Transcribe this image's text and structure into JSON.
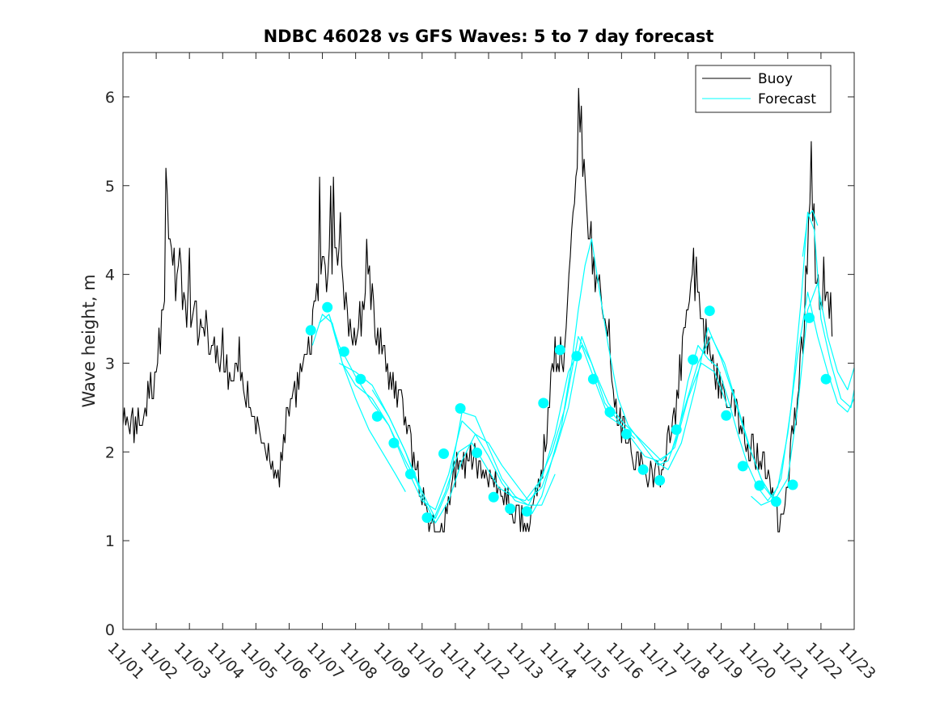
{
  "chart_data": {
    "type": "line",
    "title": "NDBC 46028 vs GFS Waves: 5 to 7 day forecast",
    "xlabel": "",
    "ylabel": "Wave height, m",
    "xlim": [
      0,
      22
    ],
    "ylim": [
      0,
      6.5
    ],
    "x_ticks": [
      0,
      1,
      2,
      3,
      4,
      5,
      6,
      7,
      8,
      9,
      10,
      11,
      12,
      13,
      14,
      15,
      16,
      17,
      18,
      19,
      20,
      21,
      22
    ],
    "x_tick_labels": [
      "11/01",
      "11/02",
      "11/03",
      "11/04",
      "11/05",
      "11/06",
      "11/07",
      "11/08",
      "11/09",
      "11/10",
      "11/11",
      "11/12",
      "11/13",
      "11/14",
      "11/15",
      "11/16",
      "11/17",
      "11/18",
      "11/19",
      "11/20",
      "11/21",
      "11/22",
      "11/23"
    ],
    "y_ticks": [
      0,
      1,
      2,
      3,
      4,
      5,
      6
    ],
    "y_tick_labels": [
      "0",
      "1",
      "2",
      "3",
      "4",
      "5",
      "6"
    ],
    "legend": {
      "placement": "top-right",
      "entries": [
        "Buoy",
        "Forecast"
      ]
    },
    "colors": {
      "buoy": "#000000",
      "forecast": "#00ffff",
      "axes": "#262626"
    },
    "buoy": {
      "name": "Buoy",
      "anchors": [
        [
          0.0,
          2.3
        ],
        [
          0.3,
          2.3
        ],
        [
          0.6,
          2.4
        ],
        [
          0.9,
          2.8
        ],
        [
          1.1,
          3.2
        ],
        [
          1.25,
          3.9
        ],
        [
          1.32,
          4.7
        ],
        [
          1.38,
          4.5
        ],
        [
          1.55,
          4.0
        ],
        [
          1.75,
          3.8
        ],
        [
          2.0,
          3.6
        ],
        [
          2.3,
          3.4
        ],
        [
          2.6,
          3.2
        ],
        [
          2.9,
          3.0
        ],
        [
          3.2,
          2.9
        ],
        [
          3.5,
          2.9
        ],
        [
          3.8,
          2.5
        ],
        [
          4.0,
          2.3
        ],
        [
          4.2,
          2.1
        ],
        [
          4.4,
          1.95
        ],
        [
          4.55,
          1.7
        ],
        [
          4.65,
          1.65
        ],
        [
          4.8,
          2.0
        ],
        [
          5.0,
          2.6
        ],
        [
          5.3,
          2.8
        ],
        [
          5.6,
          3.2
        ],
        [
          5.9,
          3.8
        ],
        [
          6.0,
          4.2
        ],
        [
          6.2,
          4.0
        ],
        [
          6.4,
          4.4
        ],
        [
          6.6,
          4.1
        ],
        [
          6.75,
          3.5
        ],
        [
          7.0,
          3.3
        ],
        [
          7.2,
          3.5
        ],
        [
          7.4,
          4.1
        ],
        [
          7.6,
          3.3
        ],
        [
          7.9,
          3.0
        ],
        [
          8.2,
          2.7
        ],
        [
          8.5,
          2.5
        ],
        [
          8.7,
          2.0
        ],
        [
          9.0,
          1.6
        ],
        [
          9.2,
          1.3
        ],
        [
          9.45,
          1.1
        ],
        [
          9.6,
          1.1
        ],
        [
          9.8,
          1.4
        ],
        [
          10.0,
          1.8
        ],
        [
          10.3,
          1.9
        ],
        [
          10.6,
          1.9
        ],
        [
          10.9,
          1.7
        ],
        [
          11.2,
          1.6
        ],
        [
          11.5,
          1.5
        ],
        [
          11.8,
          1.3
        ],
        [
          12.1,
          1.2
        ],
        [
          12.3,
          1.25
        ],
        [
          12.5,
          1.6
        ],
        [
          12.7,
          2.1
        ],
        [
          12.9,
          2.9
        ],
        [
          13.1,
          3.0
        ],
        [
          13.3,
          3.2
        ],
        [
          13.5,
          4.5
        ],
        [
          13.65,
          5.3
        ],
        [
          13.75,
          5.8
        ],
        [
          13.85,
          5.3
        ],
        [
          14.0,
          4.6
        ],
        [
          14.2,
          4.0
        ],
        [
          14.4,
          3.7
        ],
        [
          14.6,
          3.3
        ],
        [
          14.8,
          2.6
        ],
        [
          15.0,
          2.3
        ],
        [
          15.3,
          2.0
        ],
        [
          15.6,
          1.9
        ],
        [
          15.9,
          1.75
        ],
        [
          16.1,
          1.7
        ],
        [
          16.3,
          2.0
        ],
        [
          16.6,
          2.4
        ],
        [
          16.8,
          3.0
        ],
        [
          17.0,
          3.8
        ],
        [
          17.2,
          4.0
        ],
        [
          17.4,
          3.6
        ],
        [
          17.6,
          3.2
        ],
        [
          17.8,
          2.9
        ],
        [
          18.1,
          2.6
        ],
        [
          18.4,
          2.5
        ],
        [
          18.7,
          2.2
        ],
        [
          19.0,
          2.0
        ],
        [
          19.3,
          1.8
        ],
        [
          19.55,
          1.5
        ],
        [
          19.7,
          1.3
        ],
        [
          19.8,
          1.2
        ],
        [
          19.95,
          1.5
        ],
        [
          20.1,
          2.1
        ],
        [
          20.3,
          2.6
        ],
        [
          20.5,
          3.5
        ],
        [
          20.65,
          4.8
        ],
        [
          20.75,
          4.9
        ],
        [
          20.85,
          4.0
        ],
        [
          21.0,
          3.7
        ],
        [
          21.2,
          3.8
        ],
        [
          21.35,
          3.5
        ]
      ],
      "spikes": [
        [
          1.3,
          5.2
        ],
        [
          1.7,
          4.3
        ],
        [
          2.0,
          4.3
        ],
        [
          2.5,
          3.6
        ],
        [
          3.0,
          3.4
        ],
        [
          3.5,
          3.3
        ],
        [
          5.9,
          5.1
        ],
        [
          6.25,
          5.0
        ],
        [
          6.35,
          5.1
        ],
        [
          6.55,
          4.7
        ],
        [
          7.35,
          4.4
        ],
        [
          13.0,
          3.3
        ],
        [
          13.7,
          6.1
        ],
        [
          13.75,
          5.6
        ],
        [
          14.35,
          4.0
        ],
        [
          17.15,
          4.3
        ],
        [
          17.25,
          4.2
        ],
        [
          20.7,
          5.5
        ],
        [
          21.1,
          4.2
        ]
      ],
      "noise_amplitude": 0.22
    },
    "forecast": {
      "name": "Forecast",
      "lines": [
        {
          "x": [
            5.7,
            6.0,
            6.3,
            6.6,
            7.0,
            7.4,
            7.8,
            8.2,
            8.5
          ],
          "y": [
            3.2,
            3.55,
            3.45,
            3.0,
            2.6,
            2.25,
            2.0,
            1.75,
            1.55
          ]
        },
        {
          "x": [
            5.9,
            6.2,
            6.5,
            7.0,
            7.5,
            8.0,
            8.5,
            9.0
          ],
          "y": [
            3.45,
            3.55,
            3.2,
            2.85,
            2.55,
            2.3,
            1.9,
            1.55
          ]
        },
        {
          "x": [
            6.2,
            6.6,
            7.0,
            7.5,
            8.0,
            8.5,
            9.0,
            9.4,
            9.8,
            10.2,
            10.6,
            11.0,
            11.4,
            11.8,
            12.2,
            12.6,
            13.0
          ],
          "y": [
            3.55,
            3.0,
            2.75,
            2.6,
            2.3,
            1.85,
            1.45,
            1.35,
            1.75,
            2.35,
            2.2,
            1.95,
            1.65,
            1.45,
            1.4,
            1.4,
            1.75
          ]
        },
        {
          "x": [
            6.5,
            7.0,
            7.5,
            8.0,
            8.5,
            9.0,
            9.4,
            9.8,
            10.2,
            10.6,
            11.0,
            11.4,
            11.8,
            12.2,
            12.6,
            13.0,
            13.4,
            13.8,
            14.2,
            14.6,
            15.0,
            15.4
          ],
          "y": [
            3.0,
            2.9,
            2.75,
            2.4,
            2.0,
            1.55,
            1.25,
            1.6,
            2.45,
            2.4,
            2.05,
            1.7,
            1.5,
            1.4,
            1.7,
            2.2,
            2.9,
            3.2,
            2.8,
            2.4,
            2.3,
            2.15
          ]
        },
        {
          "x": [
            7.5,
            8.0,
            8.5,
            9.0,
            9.4,
            9.8,
            10.2,
            10.6,
            11.0,
            11.4,
            11.8,
            12.2,
            12.6,
            13.0,
            13.4,
            13.8,
            14.2,
            14.6,
            15.0,
            15.4,
            15.8,
            16.2,
            16.6,
            17.0,
            17.4,
            17.8,
            18.2
          ],
          "y": [
            2.7,
            2.4,
            2.0,
            1.5,
            1.2,
            1.45,
            1.9,
            2.2,
            2.1,
            1.85,
            1.65,
            1.45,
            1.6,
            2.0,
            2.5,
            3.3,
            2.9,
            2.55,
            2.35,
            2.2,
            2.05,
            1.9,
            2.05,
            2.6,
            3.0,
            2.9,
            2.5
          ]
        },
        {
          "x": [
            9.3,
            9.7,
            10.1,
            10.5,
            10.9,
            11.3,
            11.7,
            12.1,
            12.5,
            12.9,
            13.3,
            13.7,
            14.1,
            14.5,
            14.9,
            15.3,
            15.7,
            16.1,
            16.5,
            16.9,
            17.3,
            17.7,
            18.1,
            18.5,
            18.9,
            19.3,
            19.7
          ],
          "y": [
            1.2,
            1.55,
            2.0,
            2.1,
            1.85,
            1.6,
            1.5,
            1.45,
            1.65,
            2.0,
            2.5,
            3.3,
            3.0,
            2.55,
            2.35,
            2.15,
            1.95,
            1.9,
            2.0,
            2.5,
            3.0,
            3.3,
            3.0,
            2.5,
            2.0,
            1.6,
            1.4
          ]
        },
        {
          "x": [
            12.3,
            12.6,
            12.9,
            13.2,
            13.5,
            13.7,
            13.9,
            14.1,
            14.3,
            14.6,
            14.9,
            15.2,
            15.5,
            15.8,
            16.1,
            16.4,
            16.7,
            17.0,
            17.3,
            17.6,
            17.9,
            18.2,
            18.5,
            18.8,
            19.1,
            19.4,
            19.7,
            20.0,
            20.3,
            20.6,
            20.9,
            21.2,
            21.5,
            21.8,
            22.0
          ],
          "y": [
            1.3,
            1.5,
            1.9,
            2.3,
            3.0,
            3.6,
            4.1,
            4.4,
            3.9,
            3.2,
            2.6,
            2.3,
            2.15,
            2.0,
            1.85,
            1.9,
            2.2,
            2.8,
            3.2,
            3.05,
            2.95,
            2.6,
            2.2,
            1.85,
            1.6,
            1.45,
            1.6,
            2.2,
            3.1,
            3.8,
            3.3,
            2.9,
            2.55,
            2.45,
            2.6
          ]
        },
        {
          "x": [
            16.0,
            16.4,
            16.8,
            17.2,
            17.6,
            18.0,
            18.4,
            18.8,
            19.2,
            19.6,
            20.0,
            20.3,
            20.6,
            20.9,
            21.2,
            21.5,
            21.8,
            22.0
          ],
          "y": [
            1.9,
            1.8,
            2.1,
            2.7,
            3.4,
            3.05,
            2.6,
            2.1,
            1.7,
            1.45,
            1.7,
            2.5,
            3.6,
            3.9,
            3.3,
            2.9,
            2.7,
            2.95
          ]
        },
        {
          "x": [
            18.9,
            19.2,
            19.5,
            19.8,
            20.1,
            20.4,
            20.6,
            20.8,
            21.0,
            21.3,
            21.6,
            21.9,
            22.0
          ],
          "y": [
            1.5,
            1.4,
            1.45,
            1.7,
            2.5,
            3.7,
            4.7,
            4.5,
            3.5,
            3.0,
            2.6,
            2.5,
            2.7
          ]
        },
        {
          "x": [
            20.45,
            20.6,
            20.75,
            20.9
          ],
          "y": [
            4.2,
            4.65,
            4.72,
            4.55
          ]
        }
      ],
      "points": [
        [
          5.65,
          3.37
        ],
        [
          6.15,
          3.63
        ],
        [
          6.65,
          3.13
        ],
        [
          7.15,
          2.82
        ],
        [
          7.65,
          2.4
        ],
        [
          8.15,
          2.1
        ],
        [
          8.65,
          1.75
        ],
        [
          9.15,
          1.26
        ],
        [
          9.65,
          1.98
        ],
        [
          10.15,
          2.49
        ],
        [
          10.65,
          1.99
        ],
        [
          11.15,
          1.49
        ],
        [
          11.65,
          1.36
        ],
        [
          12.15,
          1.33
        ],
        [
          12.65,
          2.55
        ],
        [
          13.15,
          3.15
        ],
        [
          13.65,
          3.08
        ],
        [
          14.15,
          2.82
        ],
        [
          14.65,
          2.45
        ],
        [
          15.15,
          2.2
        ],
        [
          15.65,
          1.8
        ],
        [
          16.15,
          1.68
        ],
        [
          16.65,
          2.25
        ],
        [
          17.15,
          3.04
        ],
        [
          17.65,
          3.59
        ],
        [
          18.15,
          2.41
        ],
        [
          18.65,
          1.84
        ],
        [
          19.15,
          1.62
        ],
        [
          19.65,
          1.44
        ],
        [
          20.15,
          1.63
        ],
        [
          20.65,
          3.51
        ],
        [
          21.15,
          2.82
        ]
      ]
    }
  }
}
